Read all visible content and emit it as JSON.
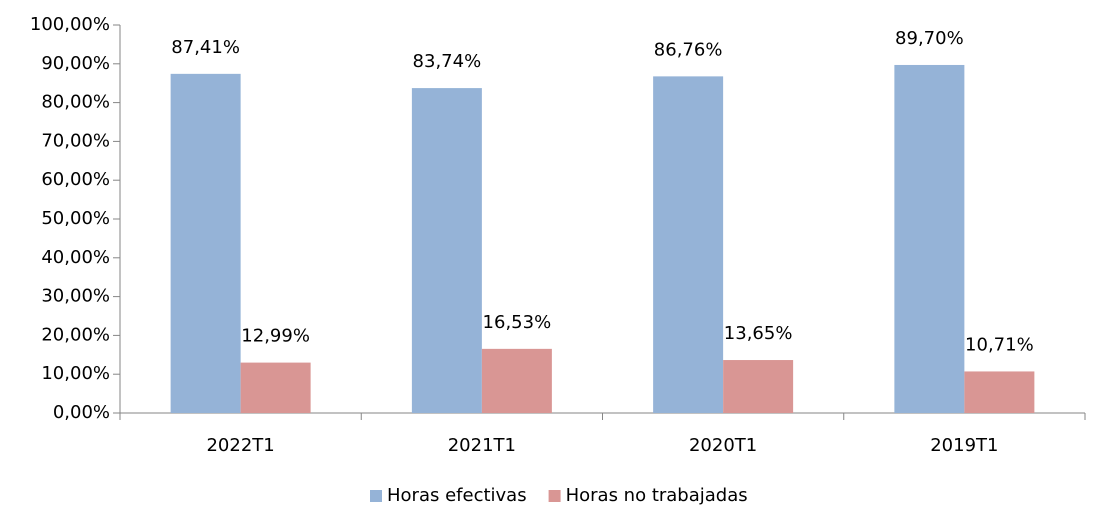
{
  "chart_data": {
    "type": "bar",
    "categories": [
      "2022T1",
      "2021T1",
      "2020T1",
      "2019T1"
    ],
    "series": [
      {
        "name": "Horas efectivas",
        "color": "#95b3d7",
        "values": [
          87.41,
          83.74,
          86.76,
          89.7
        ],
        "value_labels": [
          "87,41%",
          "83,74%",
          "86,76%",
          "89,70%"
        ]
      },
      {
        "name": "Horas no trabajadas",
        "color": "#d99694",
        "values": [
          12.99,
          16.53,
          13.65,
          10.71
        ],
        "value_labels": [
          "12,99%",
          "16,53%",
          "13,65%",
          "10,71%"
        ]
      }
    ],
    "ylim": [
      0,
      100
    ],
    "yticks": [
      {
        "value": 0,
        "label": "0,00%"
      },
      {
        "value": 10,
        "label": "10,00%"
      },
      {
        "value": 20,
        "label": "20,00%"
      },
      {
        "value": 30,
        "label": "30,00%"
      },
      {
        "value": 40,
        "label": "40,00%"
      },
      {
        "value": 50,
        "label": "50,00%"
      },
      {
        "value": 60,
        "label": "60,00%"
      },
      {
        "value": 70,
        "label": "70,00%"
      },
      {
        "value": 80,
        "label": "80,00%"
      },
      {
        "value": 90,
        "label": "90,00%"
      },
      {
        "value": 100,
        "label": "100,00%"
      }
    ],
    "grid": false,
    "legend": "bottom"
  }
}
